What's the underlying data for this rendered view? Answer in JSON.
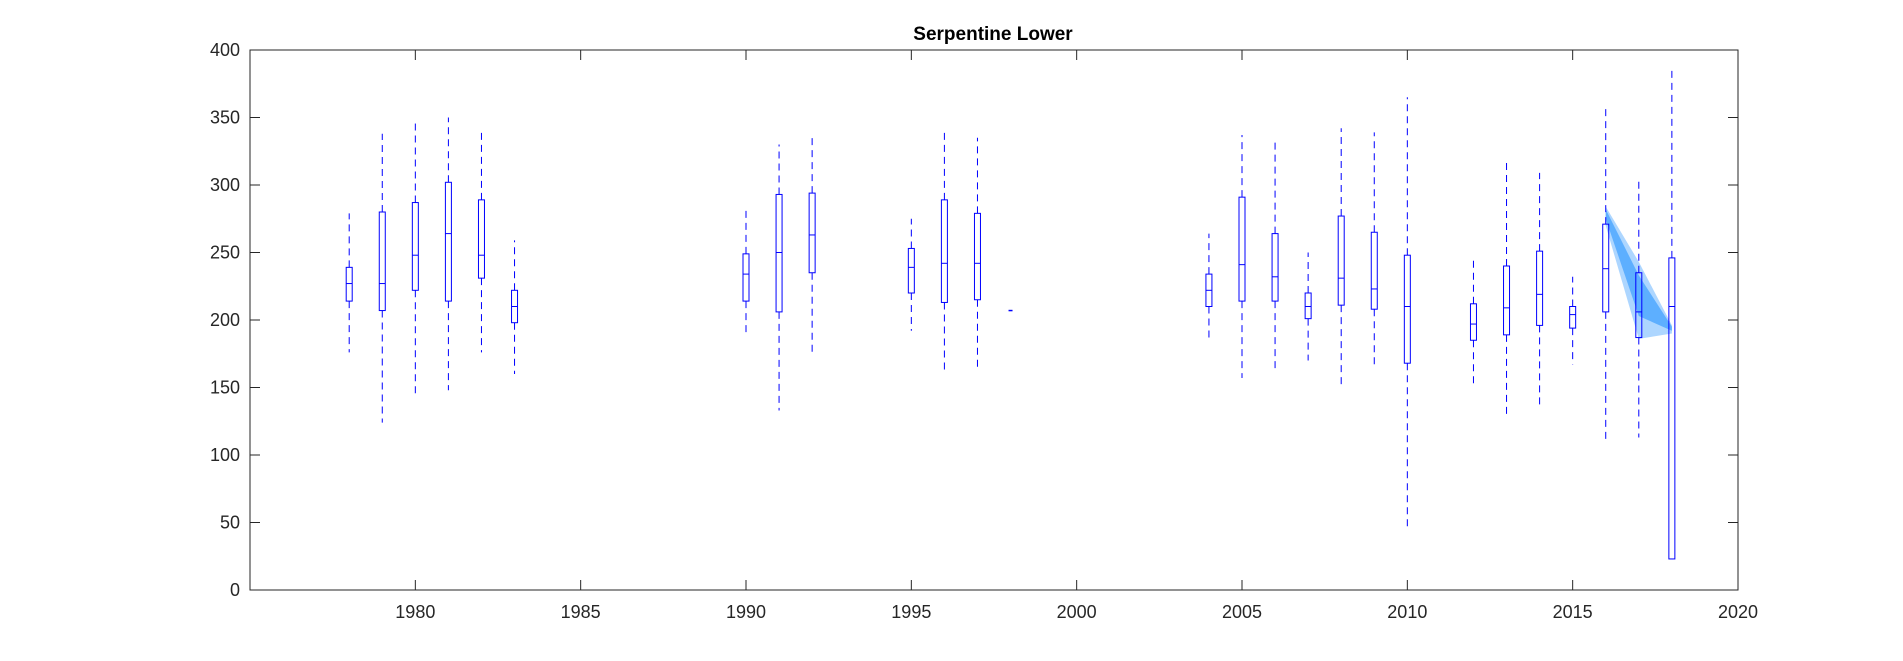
{
  "chart_data": {
    "type": "box",
    "title": "Serpentine Lower",
    "xlabel": "",
    "ylabel": "",
    "xlim": [
      1975,
      2020
    ],
    "ylim": [
      0,
      400
    ],
    "xticks": [
      1980,
      1985,
      1990,
      1995,
      2000,
      2005,
      2010,
      2015,
      2020
    ],
    "yticks": [
      0,
      50,
      100,
      150,
      200,
      250,
      300,
      350,
      400
    ],
    "grid": false,
    "box_color": "#0000ff",
    "band_color": "#3399ff",
    "boxes": [
      {
        "year": 1978,
        "whisker_low": 176,
        "q1": 214,
        "median": 227,
        "q3": 239,
        "whisker_high": 279
      },
      {
        "year": 1979,
        "whisker_low": 124,
        "q1": 207,
        "median": 227,
        "q3": 280,
        "whisker_high": 338
      },
      {
        "year": 1980,
        "whisker_low": 145,
        "q1": 222,
        "median": 248,
        "q3": 287,
        "whisker_high": 346
      },
      {
        "year": 1981,
        "whisker_low": 148,
        "q1": 214,
        "median": 264,
        "q3": 302,
        "whisker_high": 350
      },
      {
        "year": 1982,
        "whisker_low": 176,
        "q1": 231,
        "median": 248,
        "q3": 289,
        "whisker_high": 341
      },
      {
        "year": 1983,
        "whisker_low": 160,
        "q1": 198,
        "median": 210,
        "q3": 222,
        "whisker_high": 259
      },
      {
        "year": 1990,
        "whisker_low": 188,
        "q1": 214,
        "median": 234,
        "q3": 249,
        "whisker_high": 283
      },
      {
        "year": 1991,
        "whisker_low": 133,
        "q1": 206,
        "median": 250,
        "q3": 293,
        "whisker_high": 330
      },
      {
        "year": 1992,
        "whisker_low": 176,
        "q1": 235,
        "median": 263,
        "q3": 294,
        "whisker_high": 336
      },
      {
        "year": 1995,
        "whisker_low": 192,
        "q1": 220,
        "median": 239,
        "q3": 253,
        "whisker_high": 275
      },
      {
        "year": 1996,
        "whisker_low": 161,
        "q1": 213,
        "median": 242,
        "q3": 289,
        "whisker_high": 342
      },
      {
        "year": 1997,
        "whisker_low": 165,
        "q1": 215,
        "median": 242,
        "q3": 279,
        "whisker_high": 335
      },
      {
        "year": 1998,
        "whisker_low": 207,
        "q1": 207,
        "median": 207,
        "q3": 207,
        "whisker_high": 207
      },
      {
        "year": 2004,
        "whisker_low": 184,
        "q1": 210,
        "median": 222,
        "q3": 234,
        "whisker_high": 264
      },
      {
        "year": 2005,
        "whisker_low": 157,
        "q1": 214,
        "median": 241,
        "q3": 291,
        "whisker_high": 337
      },
      {
        "year": 2006,
        "whisker_low": 162,
        "q1": 214,
        "median": 232,
        "q3": 264,
        "whisker_high": 332
      },
      {
        "year": 2007,
        "whisker_low": 170,
        "q1": 201,
        "median": 210,
        "q3": 220,
        "whisker_high": 250
      },
      {
        "year": 2008,
        "whisker_low": 152,
        "q1": 211,
        "median": 231,
        "q3": 277,
        "whisker_high": 342
      },
      {
        "year": 2009,
        "whisker_low": 165,
        "q1": 208,
        "median": 223,
        "q3": 265,
        "whisker_high": 339
      },
      {
        "year": 2010,
        "whisker_low": 47,
        "q1": 168,
        "median": 210,
        "q3": 248,
        "whisker_high": 365
      },
      {
        "year": 2012,
        "whisker_low": 153,
        "q1": 185,
        "median": 197,
        "q3": 212,
        "whisker_high": 244
      },
      {
        "year": 2013,
        "whisker_low": 129,
        "q1": 189,
        "median": 209,
        "q3": 240,
        "whisker_high": 320
      },
      {
        "year": 2014,
        "whisker_low": 136,
        "q1": 196,
        "median": 219,
        "q3": 251,
        "whisker_high": 309
      },
      {
        "year": 2015,
        "whisker_low": 167,
        "q1": 194,
        "median": 204,
        "q3": 210,
        "whisker_high": 232
      },
      {
        "year": 2016,
        "whisker_low": 109,
        "q1": 206,
        "median": 238,
        "q3": 271,
        "whisker_high": 358
      },
      {
        "year": 2017,
        "whisker_low": 113,
        "q1": 187,
        "median": 206,
        "q3": 235,
        "whisker_high": 305
      },
      {
        "year": 2018,
        "whisker_low": 23,
        "q1": 23,
        "median": 210,
        "q3": 246,
        "whisker_high": 386
      }
    ],
    "bands": [
      {
        "name": "outer",
        "x": [
          2016,
          2017,
          2018
        ],
        "low": [
          270,
          186,
          190
        ],
        "high": [
          284,
          243,
          196
        ],
        "opacity": 0.4
      },
      {
        "name": "inner",
        "x": [
          2016,
          2017,
          2018
        ],
        "low": [
          275,
          203,
          192
        ],
        "high": [
          282,
          233,
          195
        ],
        "opacity": 0.65
      }
    ]
  }
}
